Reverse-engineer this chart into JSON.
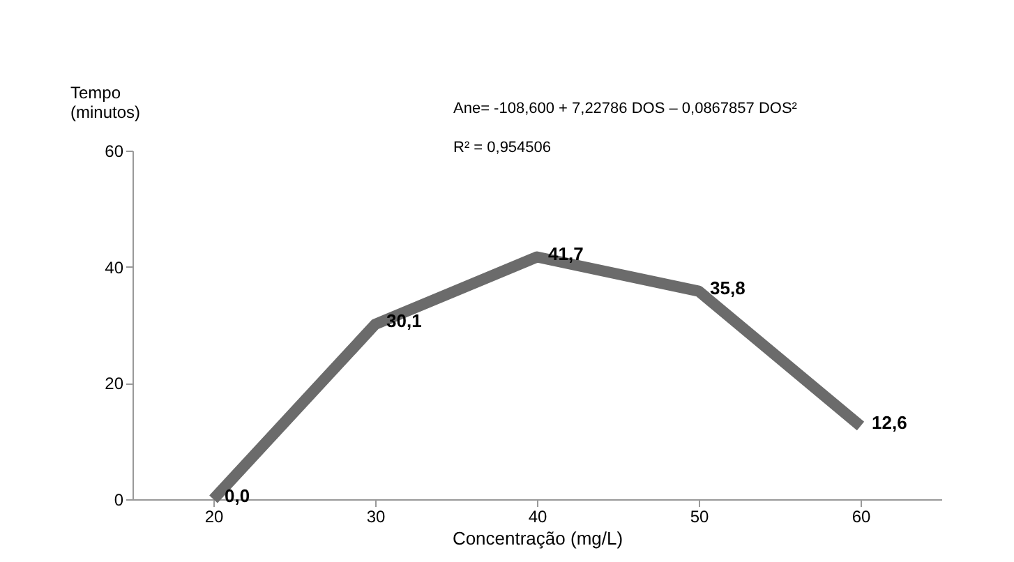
{
  "chart_data": {
    "type": "line",
    "categories": [
      "20",
      "30",
      "40",
      "50",
      "60"
    ],
    "series": [
      {
        "color": "#6b6b6b",
        "values": [
          0.0,
          30.1,
          41.7,
          35.8,
          12.6
        ],
        "value_labels": [
          "0,0",
          "30,1",
          "41,7",
          "35,8",
          "12,6"
        ]
      }
    ],
    "xlabel": "Concentração (mg/L)",
    "ylabel": "Tempo (minutos)",
    "ylim": [
      0,
      60
    ],
    "yticks": [
      0,
      20,
      40,
      60
    ],
    "grid": false,
    "legend": false,
    "marker": "none",
    "line_style": "solid",
    "annotations": [
      "Ane= -108,600 + 7,22786 DOS – 0,0867857 DOS²",
      "R² = 0,954506"
    ]
  }
}
